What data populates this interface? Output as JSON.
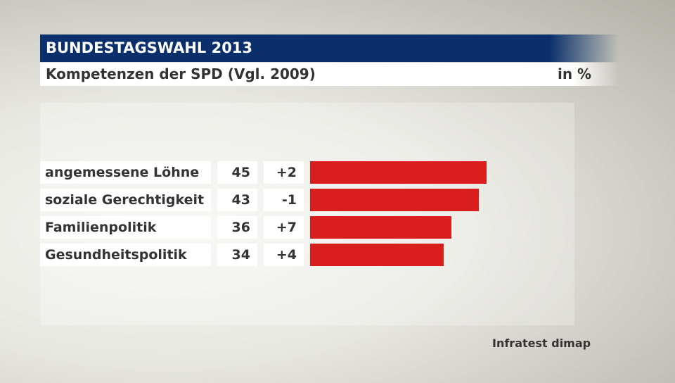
{
  "header": {
    "title": "BUNDESTAGSWAHL 2013",
    "subtitle": "Kompetenzen der SPD (Vgl. 2009)",
    "unit": "in %"
  },
  "source": "Infratest dimap",
  "colors": {
    "bar": "#d91e1e",
    "header": "#0a2f6b"
  },
  "chart_data": {
    "type": "bar",
    "orientation": "horizontal",
    "title": "Kompetenzen der SPD (Vgl. 2009)",
    "unit": "in %",
    "categories": [
      "angemessene Löhne",
      "soziale Gerechtigkeit",
      "Familienpolitik",
      "Gesundheitspolitik"
    ],
    "values": [
      45,
      43,
      36,
      34
    ],
    "changes": [
      "+2",
      "-1",
      "+7",
      "+4"
    ]
  }
}
